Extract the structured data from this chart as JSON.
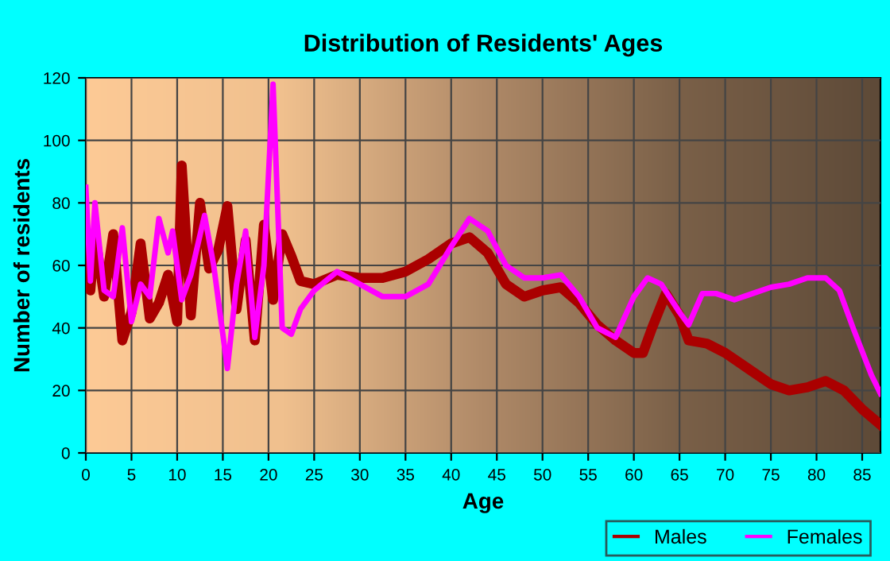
{
  "chart_data": {
    "type": "line",
    "title": "Distribution of Residents' Ages",
    "xlabel": "Age",
    "ylabel": "Number of residents",
    "xlim": [
      0,
      87
    ],
    "ylim": [
      0,
      120
    ],
    "xticks": [
      0,
      5,
      10,
      15,
      20,
      25,
      30,
      35,
      40,
      45,
      50,
      55,
      60,
      65,
      70,
      75,
      80,
      85
    ],
    "yticks": [
      0,
      20,
      40,
      60,
      80,
      100,
      120
    ],
    "grid": true,
    "legend": "bottom right",
    "marker": "none",
    "line_style": "solid",
    "series": [
      {
        "name": "Males",
        "color": "#aa0000",
        "x": [
          0,
          0.5,
          1,
          2,
          3,
          4,
          5,
          6,
          7,
          8,
          9,
          10,
          10.5,
          11.5,
          12.5,
          13.5,
          14.5,
          15.5,
          16.5,
          17.5,
          18.5,
          19.5,
          20.5,
          21.5,
          22.5,
          23.5,
          25,
          27.5,
          30,
          32.5,
          35,
          37.5,
          40,
          42,
          44,
          46,
          48,
          50,
          52,
          54,
          56,
          58,
          60,
          61,
          62,
          63.5,
          65,
          66,
          68,
          70,
          73,
          75,
          77,
          79,
          81,
          83,
          85,
          87
        ],
        "values": [
          67,
          52,
          70,
          50,
          70,
          36,
          45,
          67,
          43,
          48,
          57,
          42,
          92,
          44,
          80,
          59,
          65,
          79,
          46,
          68,
          36,
          73,
          49,
          70,
          63,
          55,
          54,
          57,
          56,
          56,
          58,
          62,
          67,
          69,
          64,
          54,
          50,
          52,
          53,
          48,
          41,
          36,
          32,
          32,
          40,
          51,
          44,
          36,
          35,
          32,
          26,
          22,
          20,
          21,
          23,
          20,
          14,
          9
        ]
      },
      {
        "name": "Females",
        "color": "#ff00ff",
        "x": [
          0,
          0.5,
          1,
          2,
          3,
          4,
          5,
          6,
          7,
          8,
          9,
          9.5,
          10.5,
          11.5,
          13,
          14,
          15,
          15.5,
          16.5,
          17.5,
          18.5,
          19.5,
          20.5,
          21.5,
          22.5,
          23.5,
          25,
          27.5,
          30,
          32.5,
          35,
          37.5,
          40,
          42,
          44,
          46,
          48,
          50,
          52,
          54,
          56,
          58,
          60,
          61.5,
          63,
          65,
          66,
          67.5,
          69,
          71,
          73,
          75,
          77,
          79,
          81,
          82.5,
          84,
          86,
          87
        ],
        "values": [
          85,
          55,
          80,
          52,
          50,
          72,
          42,
          54,
          50,
          75,
          64,
          71,
          49,
          57,
          76,
          60,
          38,
          27,
          54,
          71,
          37,
          60,
          118,
          40,
          38,
          46,
          52,
          58,
          54,
          50,
          50,
          54,
          66,
          75,
          71,
          60,
          56,
          56,
          57,
          50,
          40,
          37,
          50,
          56,
          54,
          45,
          41,
          51,
          51,
          49,
          51,
          53,
          54,
          56,
          56,
          52,
          40,
          25,
          19
        ]
      }
    ]
  }
}
